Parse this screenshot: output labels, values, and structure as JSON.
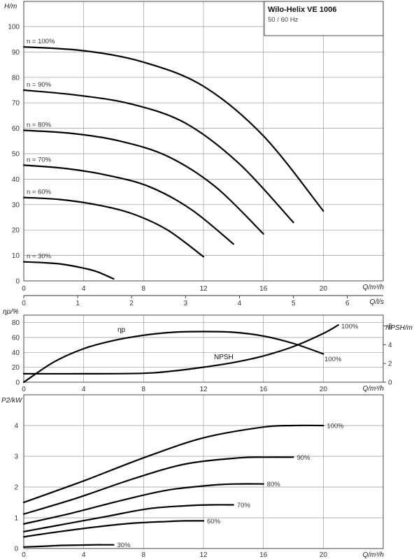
{
  "title_box": {
    "title": "Wilo-Helix VE 1006",
    "subtitle": "50 / 60 Hz"
  },
  "chart_data": [
    {
      "id": "head",
      "type": "line",
      "ylabel": "H/m",
      "xlabel": "Q/m³/h",
      "xlabel2": "Q/l/s",
      "xlim": [
        0,
        24
      ],
      "ylim": [
        0,
        100
      ],
      "xticks": [
        0,
        4,
        8,
        12,
        16,
        20
      ],
      "yticks": [
        0,
        10,
        20,
        30,
        40,
        50,
        60,
        70,
        80,
        90,
        100
      ],
      "xticks2": [
        0,
        1,
        2,
        3,
        4,
        5,
        6
      ],
      "grid": true,
      "series": [
        {
          "name": "n = 100%",
          "x": [
            0,
            4,
            8,
            12,
            16,
            20
          ],
          "y": [
            92,
            90.5,
            86,
            76.5,
            57,
            27.5
          ]
        },
        {
          "name": "n = 90%",
          "x": [
            0,
            3.6,
            7.2,
            10.8,
            14.4,
            18
          ],
          "y": [
            75,
            73,
            69.5,
            62,
            46,
            23
          ]
        },
        {
          "name": "n = 80%",
          "x": [
            0,
            3.2,
            6.4,
            9.6,
            12.8,
            16
          ],
          "y": [
            59.2,
            58,
            55,
            49,
            37,
            18.5
          ]
        },
        {
          "name": "n = 70%",
          "x": [
            0,
            2.8,
            5.6,
            8.4,
            11.2,
            14
          ],
          "y": [
            45.5,
            44.2,
            41.5,
            37,
            28,
            14.5
          ]
        },
        {
          "name": "n = 60%",
          "x": [
            0,
            2.4,
            4.8,
            7.2,
            9.6,
            12
          ],
          "y": [
            32.8,
            32,
            30,
            26.5,
            20,
            9.5
          ]
        },
        {
          "name": "n = 30%",
          "x": [
            0,
            1.2,
            2.4,
            3.6,
            4.8,
            6
          ],
          "y": [
            7.5,
            7.2,
            6.7,
            5.5,
            3.8,
            0.8
          ]
        }
      ]
    },
    {
      "id": "efficiency_npsh",
      "type": "line",
      "ylabel": "ηp/%",
      "ylabel_right": "NPSH/m",
      "xlabel": "Q/m³/h",
      "xlim": [
        0,
        24
      ],
      "ylim": [
        0,
        90
      ],
      "ylim_right": [
        0,
        7
      ],
      "xticks": [
        0,
        4,
        8,
        12,
        16,
        20
      ],
      "yticks": [
        0,
        20,
        40,
        60,
        80
      ],
      "yticks_right": [
        0,
        2,
        4,
        6
      ],
      "grid": true,
      "series": [
        {
          "name": "ηp",
          "axis": "left",
          "end_label": "100%",
          "x": [
            0,
            2,
            4,
            6,
            8,
            10,
            12,
            14,
            16,
            18,
            20
          ],
          "y": [
            0,
            27,
            45,
            56,
            63,
            67,
            68,
            67,
            62,
            52,
            38
          ]
        },
        {
          "name": "NPSH",
          "axis": "right",
          "end_label": "100%",
          "x": [
            0,
            4,
            8,
            10,
            12,
            14,
            16,
            18,
            20,
            21
          ],
          "y": [
            0.9,
            0.9,
            0.95,
            1.2,
            1.6,
            2.1,
            2.8,
            3.8,
            5.2,
            6.1
          ]
        }
      ]
    },
    {
      "id": "power",
      "type": "line",
      "ylabel": "P2/kW",
      "xlabel": "Q/m³/h",
      "xlim": [
        0,
        24
      ],
      "ylim": [
        0,
        4.5
      ],
      "xticks": [
        0,
        4,
        8,
        12,
        16,
        20
      ],
      "yticks": [
        0,
        1,
        2,
        3,
        4
      ],
      "grid": true,
      "series": [
        {
          "name": "100%",
          "x": [
            0,
            4,
            8,
            12,
            16,
            18,
            20
          ],
          "y": [
            1.5,
            2.2,
            2.95,
            3.6,
            3.95,
            4.0,
            4.0
          ]
        },
        {
          "name": "90%",
          "x": [
            0,
            3.6,
            7.2,
            10.8,
            14.4,
            16.2,
            18
          ],
          "y": [
            1.12,
            1.65,
            2.25,
            2.75,
            2.95,
            2.97,
            2.97
          ]
        },
        {
          "name": "80%",
          "x": [
            0,
            3.2,
            6.4,
            9.6,
            12.8,
            14.4,
            16
          ],
          "y": [
            0.8,
            1.15,
            1.55,
            1.9,
            2.07,
            2.1,
            2.1
          ]
        },
        {
          "name": "70%",
          "x": [
            0,
            2.8,
            5.6,
            8.4,
            11.2,
            12.6,
            14
          ],
          "y": [
            0.55,
            0.8,
            1.05,
            1.3,
            1.4,
            1.42,
            1.42
          ]
        },
        {
          "name": "60%",
          "x": [
            0,
            2.4,
            4.8,
            7.2,
            9.6,
            10.8,
            12
          ],
          "y": [
            0.38,
            0.55,
            0.7,
            0.82,
            0.88,
            0.9,
            0.9
          ]
        },
        {
          "name": "30%",
          "x": [
            0,
            1.2,
            2.4,
            3.6,
            4.8,
            5.4,
            6
          ],
          "y": [
            0.05,
            0.07,
            0.1,
            0.11,
            0.12,
            0.12,
            0.12
          ]
        }
      ]
    }
  ]
}
